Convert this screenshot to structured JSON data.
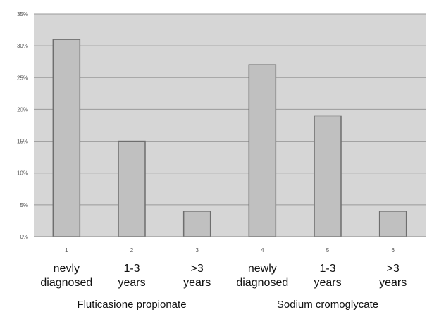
{
  "chart_data": {
    "type": "bar",
    "categories": [
      "1",
      "2",
      "3",
      "4",
      "5",
      "6"
    ],
    "values": [
      31,
      15,
      4,
      27,
      19,
      4
    ],
    "value_unit": "percent",
    "category_sublabels": [
      [
        "nevly",
        "diagnosed"
      ],
      [
        "1-3",
        "years"
      ],
      [
        ">3",
        "years"
      ],
      [
        "newly",
        "diagnosed"
      ],
      [
        "1-3",
        "years"
      ],
      [
        ">3",
        "years"
      ]
    ],
    "groups": [
      {
        "label": "Fluticasione propionate",
        "categories": [
          "1",
          "2",
          "3"
        ]
      },
      {
        "label": "Sodium cromoglycate",
        "categories": [
          "4",
          "5",
          "6"
        ]
      }
    ],
    "yticks": [
      "0%",
      "5%",
      "10%",
      "15%",
      "20%",
      "25%",
      "30%",
      "35%"
    ],
    "ylim": [
      0,
      35
    ],
    "grid": true,
    "legend": "none",
    "colors": {
      "plot_background": "#d6d6d6",
      "bar_fill": "#c0c0c0",
      "bar_stroke": "#6e6e6e",
      "gridline": "#9a9a9a"
    }
  }
}
